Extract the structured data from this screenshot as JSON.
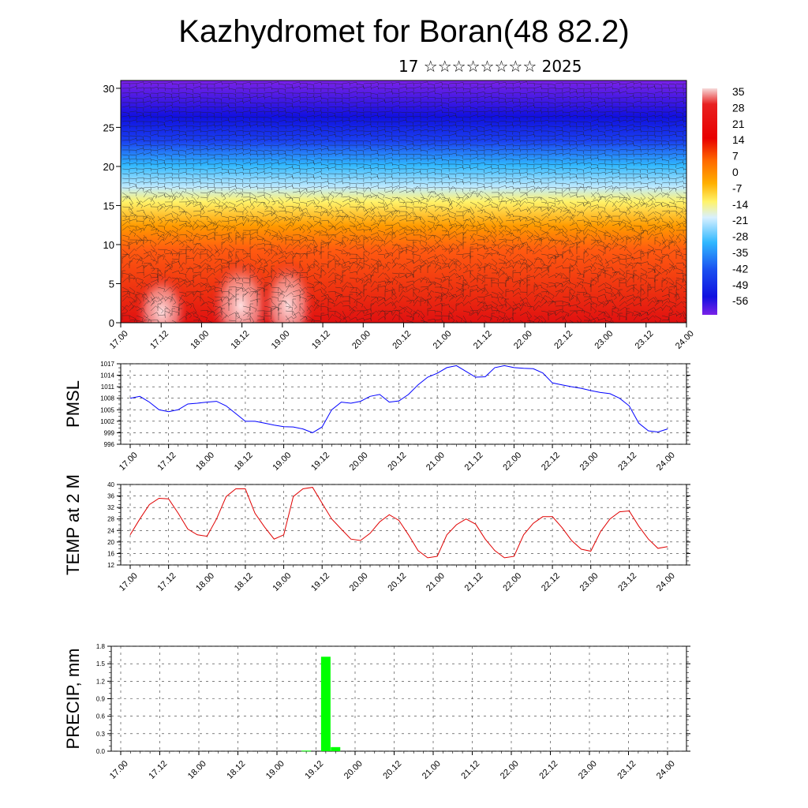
{
  "header": {
    "title": "Kazhydromet for Boran(48 82.2)",
    "subtitle": "17 ☆☆☆☆☆☆☆☆ 2025"
  },
  "x_ticks": [
    "17.00",
    "17.12",
    "18.00",
    "18.12",
    "19.00",
    "19.12",
    "20.00",
    "20.12",
    "21.00",
    "21.12",
    "22.00",
    "22.12",
    "23.00",
    "23.12",
    "24.00"
  ],
  "chart_data": [
    {
      "type": "heatmap",
      "y_ticks": [
        "0",
        "5",
        "10",
        "15",
        "20",
        "25",
        "30"
      ],
      "ylim": [
        0,
        31
      ],
      "colorbar_labels": [
        "35",
        "28",
        "21",
        "14",
        "7",
        "0",
        "-7",
        "-14",
        "-21",
        "-28",
        "-35",
        "-42",
        "-49",
        "-56"
      ],
      "colors": {
        "hot": "#e01010",
        "warm": "#ff8a00",
        "neutral": "#fff36a",
        "cool": "#30b8ff",
        "cold": "#1010e0",
        "coldest": "#7a22e8"
      }
    },
    {
      "type": "line",
      "ylabel": "PMSL",
      "y_ticks": [
        "996",
        "999",
        "1002",
        "1005",
        "1008",
        "1011",
        "1014",
        "1017"
      ],
      "ylim": [
        996,
        1017
      ],
      "color": "#0000ff",
      "x": [
        0,
        0.125,
        0.25,
        0.375,
        0.5,
        0.625,
        0.75,
        0.875,
        1,
        1.125,
        1.25,
        1.375,
        1.5,
        1.625,
        1.75,
        1.875,
        2,
        2.125,
        2.25,
        2.375,
        2.5,
        2.625,
        2.75,
        2.875,
        3,
        3.125,
        3.25,
        3.375,
        3.5,
        3.625,
        3.75,
        3.875,
        4,
        4.125,
        4.25,
        4.375,
        4.5,
        4.625,
        4.75,
        4.875,
        5,
        5.125,
        5.25,
        5.375,
        5.5,
        5.625,
        5.75,
        5.875,
        6,
        6.125,
        6.25,
        6.375,
        6.5,
        6.625,
        6.75,
        6.875,
        7
      ],
      "values": [
        1008,
        1008.5,
        1007,
        1005,
        1004.5,
        1005,
        1006.5,
        1006.7,
        1007,
        1007.2,
        1006,
        1004,
        1002,
        1002,
        1001.5,
        1001,
        1000.6,
        1000.5,
        1000,
        999,
        1000.5,
        1005,
        1007,
        1006.7,
        1007.2,
        1008.5,
        1009,
        1007,
        1007.3,
        1009,
        1011.5,
        1013.5,
        1014.5,
        1016,
        1016.5,
        1015,
        1013.5,
        1013.6,
        1016,
        1016.5,
        1016,
        1015.8,
        1015.7,
        1014.6,
        1012,
        1011.5,
        1011,
        1010.6,
        1010,
        1009.5,
        1009.2,
        1008,
        1006,
        1001.5,
        999.5,
        999.2,
        1000
      ]
    },
    {
      "type": "line",
      "ylabel": "TEMP at 2 M",
      "y_ticks": [
        "12",
        "16",
        "20",
        "24",
        "28",
        "32",
        "36",
        "40"
      ],
      "ylim": [
        12,
        40
      ],
      "color": "#e00000",
      "x": [
        0,
        0.125,
        0.25,
        0.375,
        0.5,
        0.625,
        0.75,
        0.875,
        1,
        1.125,
        1.25,
        1.375,
        1.5,
        1.625,
        1.75,
        1.875,
        2,
        2.125,
        2.25,
        2.375,
        2.5,
        2.625,
        2.75,
        2.875,
        3,
        3.125,
        3.25,
        3.375,
        3.5,
        3.625,
        3.75,
        3.875,
        4,
        4.125,
        4.25,
        4.375,
        4.5,
        4.625,
        4.75,
        4.875,
        5,
        5.125,
        5.25,
        5.375,
        5.5,
        5.625,
        5.75,
        5.875,
        6,
        6.125,
        6.25,
        6.375,
        6.5,
        6.625,
        6.75,
        6.875,
        7
      ],
      "values": [
        22.5,
        28,
        33,
        35.2,
        35,
        30,
        24.5,
        22.5,
        22,
        28,
        35.8,
        38.5,
        38.5,
        30,
        25.2,
        21,
        22.5,
        35.8,
        38.5,
        39,
        33.5,
        28,
        24.5,
        21,
        20.5,
        23,
        27,
        29.5,
        27.5,
        22.5,
        17,
        14.5,
        15,
        22.5,
        26,
        28,
        26.2,
        21,
        17,
        14.5,
        15,
        22.5,
        26.5,
        28.8,
        28.8,
        25,
        20.5,
        17.5,
        16.8,
        23.5,
        28,
        30.5,
        30.8,
        25.5,
        21,
        17.8,
        18.4
      ]
    },
    {
      "type": "bar",
      "ylabel": "PRECIP, mm",
      "y_ticks": [
        "0.0",
        "0.3",
        "0.6",
        "0.9",
        "1.2",
        "1.5",
        "1.8"
      ],
      "ylim": [
        0,
        1.8
      ],
      "color": "#00ff00",
      "x": [
        2.375,
        2.625,
        2.75
      ],
      "values": [
        0.01,
        1.62,
        0.07
      ]
    }
  ]
}
